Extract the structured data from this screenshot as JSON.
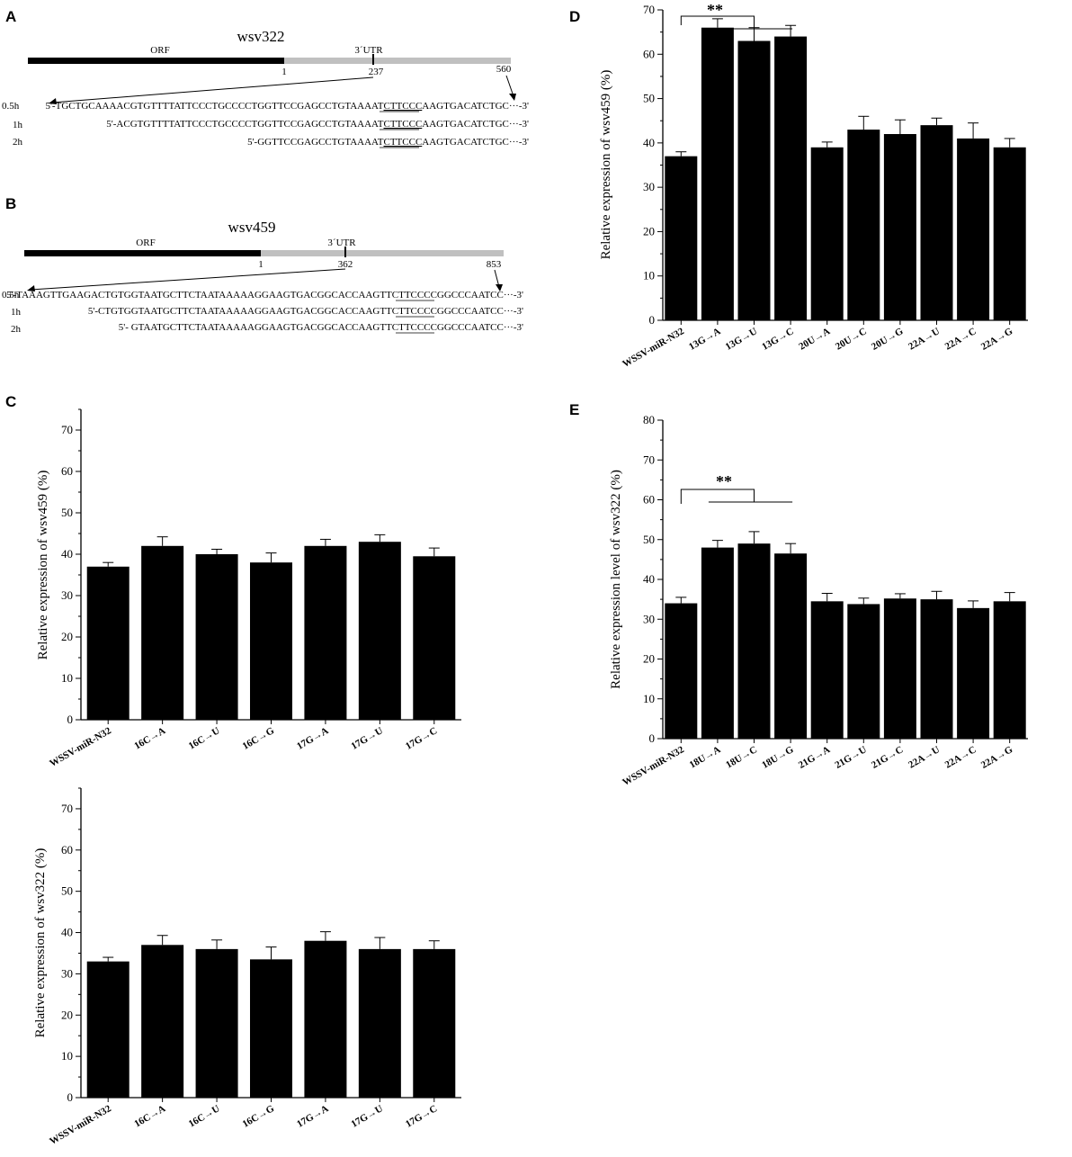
{
  "panels": {
    "A": {
      "letter": "A",
      "gene": "wsv322",
      "orf_label": "ORF",
      "utr_label": "3´UTR",
      "pos_start": "1",
      "pos_mid": "237",
      "pos_end": "560",
      "rows": [
        {
          "time": "0.5h",
          "seq_pre": "5'-TGCTGCAAAACGTGTTTTATTCCCTGCCCCTGGTTCCGAGCCTGTAAAAT",
          "motif": "CTTCCC",
          "seq_post": "AAGTGACATCTGC···-3'"
        },
        {
          "time": "1h",
          "seq_pre": "5'-ACGTGTTTTATTCCCTGCCCCTGGTTCCGAGCCTGTAAAAT",
          "motif": "CTTCCC",
          "seq_post": "AAGTGACATCTGC···-3'"
        },
        {
          "time": "2h",
          "seq_pre": "5'-GGTTCCGAGCCTGTAAAAT",
          "motif": "CTTCCC",
          "seq_post": "AAGTGACATCTGC···-3'"
        }
      ]
    },
    "B": {
      "letter": "B",
      "gene": "wsv459",
      "orf_label": "ORF",
      "utr_label": "3´UTR",
      "pos_start": "1",
      "pos_mid": "362",
      "pos_end": "853",
      "rows": [
        {
          "time": "0.5h",
          "seq_pre": "5'-TAAAGTTGAAGACTGTGGTAATGCTTCTAATAAAAAGGAAGTGACGGCACCAAGTT",
          "motif": "CTTCCC",
          "seq_post": "CGGCCCAATCC···-3'"
        },
        {
          "time": "1h",
          "seq_pre": "5'-CTGTGGTAATGCTTCTAATAAAAAGGAAGTGACGGCACCAAGTT",
          "motif": "CTTCCC",
          "seq_post": "CGGCCCAATCC···-3'"
        },
        {
          "time": "2h",
          "seq_pre": "5'- GTAATGCTTCTAATAAAAAGGAAGTGACGGCACCAAGTT",
          "motif": "CTTCCC",
          "seq_post": "CGGCCCAATCC···-3'"
        }
      ]
    },
    "C_letter": "C",
    "D_letter": "D",
    "E_letter": "E"
  },
  "chart_data": [
    {
      "id": "C-top",
      "type": "bar",
      "ylabel": "Relative expression of wsv459 (%)",
      "ylim": [
        0,
        75
      ],
      "yticks": [
        0,
        10,
        20,
        30,
        40,
        50,
        60,
        70
      ],
      "categories": [
        "WSSV-miR-N32",
        "16C→A",
        "16C→U",
        "16C→G",
        "17G→A",
        "17G→U",
        "17G→C"
      ],
      "values": [
        37,
        42,
        40,
        38,
        42,
        43,
        39.5
      ],
      "errors": [
        1.0,
        2.2,
        1.2,
        2.3,
        1.6,
        1.7,
        2.0
      ],
      "bar_color": "#000000"
    },
    {
      "id": "C-bottom",
      "type": "bar",
      "ylabel": "Relative expression of wsv322 (%)",
      "ylim": [
        0,
        75
      ],
      "yticks": [
        0,
        10,
        20,
        30,
        40,
        50,
        60,
        70
      ],
      "categories": [
        "WSSV-miR-N32",
        "16C→A",
        "16C→U",
        "16C→G",
        "17G→A",
        "17G→U",
        "17G→C"
      ],
      "values": [
        33,
        37,
        36,
        33.5,
        38,
        36,
        36
      ],
      "errors": [
        1.0,
        2.3,
        2.2,
        3.0,
        2.2,
        2.8,
        2.0
      ],
      "bar_color": "#000000"
    },
    {
      "id": "D",
      "type": "bar",
      "ylabel": "Relative expression of wsv459 (%)",
      "ylim": [
        0,
        70
      ],
      "yticks": [
        0,
        10,
        20,
        30,
        40,
        50,
        60,
        70
      ],
      "categories": [
        "WSSV-miR-N32",
        "13G→A",
        "13G→U",
        "13G→C",
        "20U→A",
        "20U→C",
        "20U→G",
        "22A→U",
        "22A→C",
        "22A→G"
      ],
      "values": [
        37,
        66,
        63,
        64,
        39,
        43,
        42,
        44,
        41,
        39
      ],
      "errors": [
        1.0,
        2.0,
        3.0,
        2.5,
        1.2,
        3.0,
        3.2,
        1.6,
        3.5,
        2.0
      ],
      "significance": {
        "label": "**"
      },
      "bar_color": "#000000"
    },
    {
      "id": "E",
      "type": "bar",
      "ylabel": "Relative expression level of wsv322 (%)",
      "ylim": [
        0,
        80
      ],
      "yticks": [
        0,
        10,
        20,
        30,
        40,
        50,
        60,
        70,
        80
      ],
      "categories": [
        "WSSV-miR-N32",
        "18U→A",
        "18U→C",
        "18U→G",
        "21G→A",
        "21G→U",
        "21G→C",
        "22A→U",
        "22A→C",
        "22A→G"
      ],
      "values": [
        34,
        48,
        49,
        46.5,
        34.5,
        33.8,
        35.2,
        35,
        32.8,
        34.5
      ],
      "errors": [
        1.5,
        1.8,
        3.0,
        2.5,
        2.0,
        1.5,
        1.2,
        2.0,
        1.8,
        2.2
      ],
      "significance": {
        "label": "**"
      },
      "bar_color": "#000000"
    }
  ]
}
